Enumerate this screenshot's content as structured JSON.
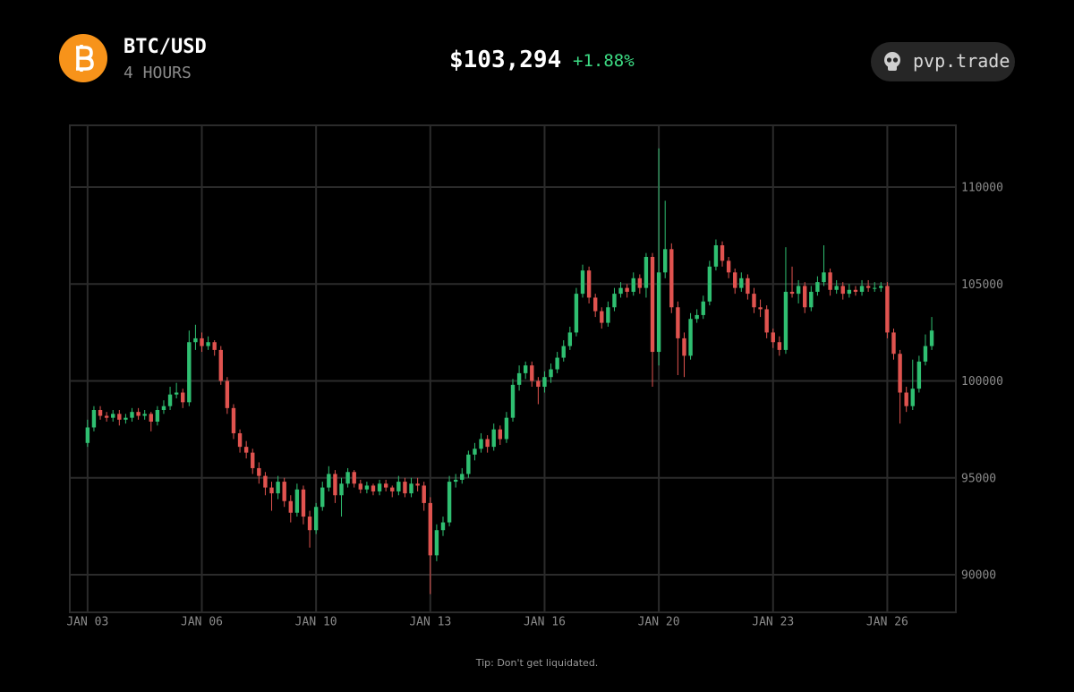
{
  "header": {
    "pair": "BTC/USD",
    "timeframe": "4 HOURS",
    "price": "$103,294",
    "change": "+1.88%",
    "brand": "pvp.trade"
  },
  "footer": {
    "tip": "Tip: Don't get liquidated."
  },
  "chart_data": {
    "type": "candlestick",
    "up_color": "#2fbf71",
    "down_color": "#e0534f",
    "grid": true,
    "xlim": [
      -2.8,
      136.8
    ],
    "xticks": [
      {
        "value": 0,
        "label": "JAN 03"
      },
      {
        "value": 18,
        "label": "JAN 06"
      },
      {
        "value": 36,
        "label": "JAN 10"
      },
      {
        "value": 54,
        "label": "JAN 13"
      },
      {
        "value": 72,
        "label": "JAN 16"
      },
      {
        "value": 90,
        "label": "JAN 20"
      },
      {
        "value": 108,
        "label": "JAN 23"
      },
      {
        "value": 126,
        "label": "JAN 26"
      }
    ],
    "ylim": [
      88060,
      113190
    ],
    "yticks": [
      90000,
      95000,
      100000,
      105000,
      110000
    ],
    "candles": [
      [
        96800,
        98000,
        96600,
        97600
      ],
      [
        97600,
        98700,
        97400,
        98500
      ],
      [
        98500,
        98700,
        98000,
        98200
      ],
      [
        98200,
        98400,
        97900,
        98100
      ],
      [
        98100,
        98500,
        97900,
        98300
      ],
      [
        98300,
        98500,
        97700,
        98000
      ],
      [
        98000,
        98300,
        97800,
        98100
      ],
      [
        98100,
        98600,
        97900,
        98400
      ],
      [
        98400,
        98600,
        98000,
        98200
      ],
      [
        98200,
        98500,
        98000,
        98300
      ],
      [
        98300,
        98400,
        97400,
        97900
      ],
      [
        97900,
        98700,
        97700,
        98500
      ],
      [
        98500,
        99000,
        98300,
        98700
      ],
      [
        98700,
        99700,
        98500,
        99300
      ],
      [
        99300,
        99900,
        99100,
        99400
      ],
      [
        99400,
        99600,
        98600,
        98900
      ],
      [
        98900,
        102600,
        98700,
        102000
      ],
      [
        102000,
        102900,
        101600,
        102200
      ],
      [
        102200,
        102500,
        101500,
        101800
      ],
      [
        101800,
        102300,
        101600,
        102000
      ],
      [
        102000,
        102100,
        101300,
        101600
      ],
      [
        101600,
        101800,
        99800,
        100000
      ],
      [
        100000,
        100200,
        98300,
        98600
      ],
      [
        98600,
        98800,
        97000,
        97300
      ],
      [
        97300,
        97500,
        96300,
        96600
      ],
      [
        96600,
        96900,
        96000,
        96300
      ],
      [
        96300,
        96500,
        95200,
        95500
      ],
      [
        95500,
        95800,
        94700,
        95100
      ],
      [
        95100,
        95300,
        94100,
        94500
      ],
      [
        94500,
        94800,
        93300,
        94200
      ],
      [
        94200,
        95100,
        93900,
        94800
      ],
      [
        94800,
        95000,
        93500,
        93800
      ],
      [
        93800,
        94100,
        92700,
        93200
      ],
      [
        93200,
        94700,
        93000,
        94400
      ],
      [
        94400,
        94600,
        92600,
        93000
      ],
      [
        93000,
        93300,
        91400,
        92300
      ],
      [
        92300,
        93700,
        92100,
        93500
      ],
      [
        93500,
        94800,
        93300,
        94500
      ],
      [
        94500,
        95600,
        94300,
        95200
      ],
      [
        95200,
        95400,
        93700,
        94100
      ],
      [
        94100,
        95000,
        93000,
        94700
      ],
      [
        94700,
        95500,
        94500,
        95300
      ],
      [
        95300,
        95400,
        94500,
        94700
      ],
      [
        94700,
        94900,
        94200,
        94400
      ],
      [
        94400,
        94800,
        94200,
        94600
      ],
      [
        94600,
        94700,
        94100,
        94300
      ],
      [
        94300,
        94900,
        94100,
        94700
      ],
      [
        94700,
        94900,
        94300,
        94500
      ],
      [
        94500,
        94600,
        94000,
        94300
      ],
      [
        94300,
        95100,
        94100,
        94800
      ],
      [
        94800,
        95000,
        94000,
        94200
      ],
      [
        94200,
        95000,
        94000,
        94700
      ],
      [
        94700,
        95000,
        94300,
        94600
      ],
      [
        94600,
        94800,
        93300,
        93700
      ],
      [
        93700,
        94000,
        89000,
        91000
      ],
      [
        91000,
        92600,
        90700,
        92300
      ],
      [
        92300,
        93000,
        92000,
        92700
      ],
      [
        92700,
        95100,
        92500,
        94800
      ],
      [
        94800,
        95200,
        94500,
        94900
      ],
      [
        94900,
        95500,
        94700,
        95200
      ],
      [
        95200,
        96400,
        95000,
        96200
      ],
      [
        96200,
        96800,
        95900,
        96500
      ],
      [
        96500,
        97300,
        96300,
        97000
      ],
      [
        97000,
        97200,
        96300,
        96600
      ],
      [
        96600,
        97800,
        96400,
        97500
      ],
      [
        97500,
        97700,
        96700,
        97000
      ],
      [
        97000,
        98400,
        96800,
        98100
      ],
      [
        98100,
        100100,
        97900,
        99800
      ],
      [
        99800,
        100800,
        99500,
        100400
      ],
      [
        100400,
        101000,
        100100,
        100800
      ],
      [
        100800,
        101000,
        99700,
        100000
      ],
      [
        100000,
        100200,
        98800,
        99700
      ],
      [
        99700,
        100500,
        99400,
        100200
      ],
      [
        100200,
        100900,
        99900,
        100600
      ],
      [
        100600,
        101500,
        100400,
        101200
      ],
      [
        101200,
        102100,
        101000,
        101800
      ],
      [
        101800,
        102800,
        101600,
        102500
      ],
      [
        102500,
        104800,
        102300,
        104500
      ],
      [
        104500,
        106000,
        104300,
        105700
      ],
      [
        105700,
        105900,
        104000,
        104300
      ],
      [
        104300,
        104500,
        103300,
        103600
      ],
      [
        103600,
        103800,
        102700,
        103000
      ],
      [
        103000,
        104100,
        102800,
        103800
      ],
      [
        103800,
        104800,
        103600,
        104500
      ],
      [
        104500,
        105100,
        104300,
        104800
      ],
      [
        104800,
        105000,
        104300,
        104600
      ],
      [
        104600,
        105600,
        104400,
        105300
      ],
      [
        105300,
        105500,
        104500,
        104800
      ],
      [
        104800,
        106600,
        104300,
        106400
      ],
      [
        106400,
        106600,
        99700,
        101500
      ],
      [
        101500,
        112000,
        100800,
        105600
      ],
      [
        105600,
        109300,
        105300,
        106800
      ],
      [
        106800,
        107100,
        103500,
        103800
      ],
      [
        103800,
        104100,
        100300,
        102200
      ],
      [
        102200,
        102500,
        100200,
        101300
      ],
      [
        101300,
        103500,
        101100,
        103200
      ],
      [
        103200,
        103700,
        103000,
        103400
      ],
      [
        103400,
        104400,
        103200,
        104100
      ],
      [
        104100,
        106200,
        103900,
        105900
      ],
      [
        105900,
        107300,
        105700,
        107000
      ],
      [
        107000,
        107200,
        105900,
        106200
      ],
      [
        106200,
        106400,
        105300,
        105600
      ],
      [
        105600,
        105800,
        104500,
        104800
      ],
      [
        104800,
        105600,
        104600,
        105300
      ],
      [
        105300,
        105500,
        104200,
        104500
      ],
      [
        104500,
        104800,
        103500,
        103800
      ],
      [
        103800,
        104200,
        103300,
        103700
      ],
      [
        103700,
        103900,
        102200,
        102500
      ],
      [
        102500,
        102700,
        101700,
        102000
      ],
      [
        102000,
        102300,
        101300,
        101600
      ],
      [
        101600,
        106900,
        101400,
        104600
      ],
      [
        104600,
        105900,
        104300,
        104500
      ],
      [
        104500,
        105200,
        104000,
        104900
      ],
      [
        104900,
        105100,
        103500,
        103800
      ],
      [
        103800,
        104900,
        103600,
        104600
      ],
      [
        104600,
        105400,
        104400,
        105100
      ],
      [
        105100,
        107000,
        104900,
        105600
      ],
      [
        105600,
        105800,
        104400,
        104700
      ],
      [
        104700,
        105200,
        104500,
        104900
      ],
      [
        104900,
        105100,
        104200,
        104500
      ],
      [
        104500,
        105000,
        104300,
        104700
      ],
      [
        104700,
        104900,
        104400,
        104600
      ],
      [
        104600,
        105200,
        104400,
        104900
      ],
      [
        104900,
        105200,
        104600,
        104800
      ],
      [
        104800,
        105100,
        104600,
        104800
      ],
      [
        104800,
        105100,
        104600,
        104900
      ],
      [
        104900,
        105100,
        102200,
        102500
      ],
      [
        102500,
        102700,
        101100,
        101400
      ],
      [
        101400,
        101600,
        97800,
        99400
      ],
      [
        99400,
        99700,
        98400,
        98700
      ],
      [
        98700,
        101100,
        98500,
        99600
      ],
      [
        99600,
        101300,
        99400,
        101000
      ],
      [
        101000,
        102400,
        100800,
        101800
      ],
      [
        101800,
        103300,
        101600,
        102600
      ]
    ]
  }
}
